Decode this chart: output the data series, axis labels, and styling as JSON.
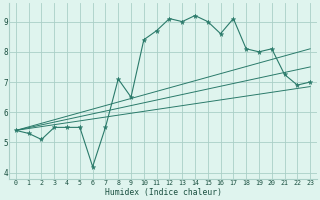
{
  "xlabel": "Humidex (Indice chaleur)",
  "bg_color": "#dff4ee",
  "grid_color": "#aacfc7",
  "line_color": "#2a7a6a",
  "xlim": [
    -0.5,
    23.5
  ],
  "ylim": [
    3.8,
    9.6
  ],
  "xticks": [
    0,
    1,
    2,
    3,
    4,
    5,
    6,
    7,
    8,
    9,
    10,
    11,
    12,
    13,
    14,
    15,
    16,
    17,
    18,
    19,
    20,
    21,
    22,
    23
  ],
  "yticks": [
    4,
    5,
    6,
    7,
    8,
    9
  ],
  "main_x": [
    0,
    1,
    2,
    3,
    4,
    5,
    6,
    7,
    8,
    9,
    10,
    11,
    12,
    13,
    14,
    15,
    16,
    17,
    18,
    19,
    20,
    21,
    22,
    23
  ],
  "main_y": [
    5.4,
    5.3,
    5.1,
    5.5,
    5.5,
    5.5,
    4.2,
    5.5,
    7.1,
    6.5,
    8.4,
    8.7,
    9.1,
    9.0,
    9.2,
    9.0,
    8.6,
    9.1,
    8.1,
    8.0,
    8.1,
    7.25,
    6.9,
    7.0
  ],
  "line1_x": [
    0,
    23
  ],
  "line1_y": [
    5.4,
    6.85
  ],
  "line2_x": [
    0,
    23
  ],
  "line2_y": [
    5.4,
    7.5
  ],
  "line3_x": [
    0,
    23
  ],
  "line3_y": [
    5.4,
    8.1
  ]
}
